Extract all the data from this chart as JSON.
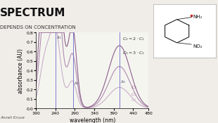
{
  "title": "SPECTRUM",
  "subtitle": "DEPENDS ON CONCENTRATION",
  "xlabel": "wavelength (nm)",
  "ylabel": "absorbance (AU)",
  "xlim": [
    190,
    480
  ],
  "ylim": [
    0.0,
    0.8
  ],
  "yticks": [
    0.0,
    0.1,
    0.2,
    0.3,
    0.4,
    0.5,
    0.6,
    0.7,
    0.8
  ],
  "xticks": [
    190,
    240,
    290,
    340,
    390,
    440,
    480
  ],
  "lambda1": 240,
  "lambda2": 285,
  "lambda3": 405,
  "curve_colors": [
    "#c8afc8",
    "#b08ab0",
    "#8b5e8b"
  ],
  "vline_color": "#6666cc",
  "bg_color": "#f5f5f0",
  "slide_bg": "#f0ede8",
  "author": "Anneli Kruve"
}
